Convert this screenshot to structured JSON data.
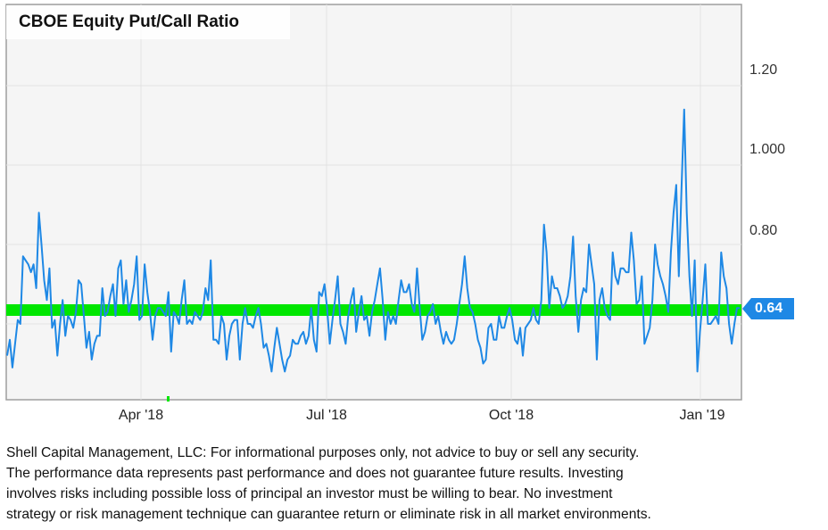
{
  "chart_data": {
    "type": "line",
    "title": "CBOE Equity Put/Call Ratio",
    "xlabel": "",
    "ylabel": "",
    "x_ticks": [
      "Apr '18",
      "Jul '18",
      "Oct '18",
      "Jan '19"
    ],
    "y_ticks": [
      "1.20",
      "1.000",
      "0.80"
    ],
    "ylim": [
      0.42,
      1.4
    ],
    "grid": true,
    "last_value_label": "0.64",
    "reference_line": {
      "value": 0.64,
      "color": "#00e600",
      "label": "0.64"
    },
    "series": [
      {
        "name": "CBOE Equity Put/Call Ratio",
        "color": "#1e88e5",
        "values": [
          0.52,
          0.56,
          0.49,
          0.55,
          0.61,
          0.6,
          0.77,
          0.76,
          0.75,
          0.73,
          0.75,
          0.69,
          0.88,
          0.8,
          0.71,
          0.66,
          0.74,
          0.59,
          0.61,
          0.52,
          0.6,
          0.66,
          0.57,
          0.62,
          0.61,
          0.59,
          0.63,
          0.71,
          0.7,
          0.62,
          0.54,
          0.58,
          0.51,
          0.55,
          0.57,
          0.57,
          0.69,
          0.62,
          0.63,
          0.67,
          0.7,
          0.62,
          0.74,
          0.76,
          0.65,
          0.71,
          0.63,
          0.66,
          0.7,
          0.77,
          0.61,
          0.62,
          0.75,
          0.68,
          0.63,
          0.56,
          0.62,
          0.64,
          0.64,
          0.63,
          0.62,
          0.68,
          0.53,
          0.63,
          0.62,
          0.6,
          0.66,
          0.71,
          0.6,
          0.61,
          0.6,
          0.63,
          0.62,
          0.61,
          0.63,
          0.69,
          0.66,
          0.76,
          0.56,
          0.56,
          0.55,
          0.62,
          0.6,
          0.51,
          0.57,
          0.6,
          0.61,
          0.61,
          0.51,
          0.6,
          0.64,
          0.6,
          0.6,
          0.59,
          0.62,
          0.64,
          0.6,
          0.54,
          0.55,
          0.52,
          0.48,
          0.54,
          0.59,
          0.55,
          0.51,
          0.48,
          0.51,
          0.52,
          0.56,
          0.55,
          0.55,
          0.57,
          0.58,
          0.55,
          0.57,
          0.64,
          0.56,
          0.53,
          0.68,
          0.67,
          0.7,
          0.64,
          0.55,
          0.61,
          0.66,
          0.72,
          0.6,
          0.58,
          0.55,
          0.62,
          0.66,
          0.69,
          0.58,
          0.63,
          0.67,
          0.61,
          0.62,
          0.57,
          0.63,
          0.66,
          0.7,
          0.74,
          0.66,
          0.56,
          0.63,
          0.6,
          0.62,
          0.6,
          0.66,
          0.71,
          0.68,
          0.68,
          0.7,
          0.65,
          0.63,
          0.74,
          0.64,
          0.56,
          0.58,
          0.62,
          0.63,
          0.65,
          0.6,
          0.62,
          0.58,
          0.55,
          0.58,
          0.56,
          0.55,
          0.56,
          0.6,
          0.65,
          0.7,
          0.77,
          0.69,
          0.64,
          0.63,
          0.6,
          0.56,
          0.54,
          0.5,
          0.51,
          0.59,
          0.6,
          0.56,
          0.56,
          0.62,
          0.59,
          0.59,
          0.62,
          0.64,
          0.61,
          0.56,
          0.55,
          0.59,
          0.52,
          0.59,
          0.6,
          0.61,
          0.64,
          0.61,
          0.6,
          0.66,
          0.85,
          0.78,
          0.64,
          0.72,
          0.69,
          0.69,
          0.67,
          0.64,
          0.65,
          0.67,
          0.72,
          0.82,
          0.67,
          0.58,
          0.66,
          0.69,
          0.68,
          0.8,
          0.75,
          0.7,
          0.51,
          0.66,
          0.69,
          0.64,
          0.62,
          0.61,
          0.78,
          0.72,
          0.7,
          0.74,
          0.74,
          0.73,
          0.73,
          0.83,
          0.76,
          0.65,
          0.66,
          0.72,
          0.55,
          0.57,
          0.59,
          0.66,
          0.8,
          0.75,
          0.72,
          0.7,
          0.67,
          0.63,
          0.78,
          0.88,
          0.95,
          0.72,
          0.94,
          1.14,
          0.88,
          0.72,
          0.62,
          0.76,
          0.48,
          0.58,
          0.66,
          0.75,
          0.6,
          0.6,
          0.61,
          0.62,
          0.6,
          0.78,
          0.72,
          0.69,
          0.6,
          0.55,
          0.6,
          0.64,
          0.64
        ]
      }
    ]
  },
  "chart": {
    "title": "CBOE Equity Put/Call Ratio",
    "y_ticks": [
      "1.20",
      "1.000",
      "0.80"
    ],
    "x_ticks": [
      "Apr '18",
      "Jul '18",
      "Oct '18",
      "Jan '19"
    ],
    "last_value": "0.64",
    "line_color": "#1e88e5",
    "band_color": "#00e600",
    "flag_color": "#1e88e5"
  },
  "disclaimer": {
    "lines": [
      "Shell Capital Management, LLC: For informational purposes only, not advice to buy or sell any security.",
      "The performance data represents past performance and does not guarantee future results. Investing",
      "involves risks including possible loss of principal an investor must be willing to bear. No investment",
      "strategy or risk management technique can guarantee return or eliminate risk in all market environments."
    ]
  }
}
